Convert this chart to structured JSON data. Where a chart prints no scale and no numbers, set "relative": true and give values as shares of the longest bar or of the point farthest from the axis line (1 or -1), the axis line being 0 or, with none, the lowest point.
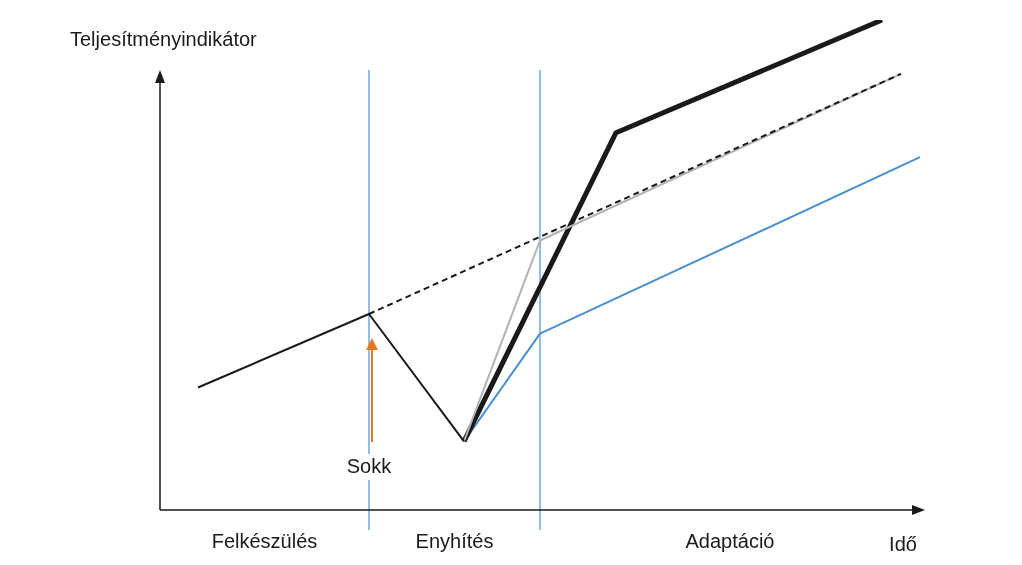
{
  "chart_data": {
    "type": "line",
    "relative": true,
    "ylabel": "Teljesítményindikátor",
    "xlabel": "Idő",
    "legend": false,
    "marker": "none",
    "categories": [
      null,
      null,
      null,
      null,
      null,
      null,
      null,
      null,
      null,
      null,
      null,
      null,
      null,
      null,
      null,
      null,
      null,
      null,
      null,
      null,
      null,
      null,
      null,
      null,
      null,
      null,
      null,
      null,
      null,
      null,
      null,
      null,
      null,
      null,
      null,
      null,
      null,
      null,
      null,
      null,
      null
    ],
    "series": [
      {
        "color": "#1a1a1a",
        "values": [
          null,
          null,
          0.25,
          null,
          null,
          null,
          null,
          null,
          null,
          null,
          null,
          0.4,
          null,
          null,
          null,
          null,
          0.14,
          null,
          null,
          null,
          null,
          null,
          null,
          null,
          null,
          null,
          null,
          null,
          null,
          null,
          null,
          null,
          null,
          null,
          null,
          null,
          null,
          null,
          null,
          null,
          null
        ]
      },
      {
        "color": "#1a1a1a",
        "line_style": "dashed",
        "values": [
          null,
          null,
          null,
          null,
          null,
          null,
          null,
          null,
          null,
          null,
          null,
          0.4,
          null,
          null,
          null,
          null,
          null,
          null,
          null,
          null,
          null,
          null,
          null,
          null,
          null,
          null,
          null,
          null,
          null,
          null,
          null,
          null,
          null,
          null,
          null,
          null,
          null,
          null,
          null,
          0.89,
          null
        ]
      },
      {
        "color": "#b3b3b3",
        "values": [
          null,
          null,
          null,
          null,
          null,
          null,
          null,
          null,
          null,
          null,
          null,
          null,
          null,
          null,
          null,
          null,
          0.14,
          null,
          null,
          null,
          0.55,
          null,
          null,
          null,
          null,
          null,
          null,
          null,
          null,
          null,
          null,
          null,
          null,
          null,
          null,
          null,
          null,
          null,
          null,
          0.89,
          null
        ]
      },
      {
        "color": "#1a1a1a",
        "values": [
          null,
          null,
          null,
          null,
          null,
          null,
          null,
          null,
          null,
          null,
          null,
          null,
          null,
          null,
          null,
          null,
          0.14,
          null,
          null,
          null,
          null,
          null,
          null,
          null,
          0.77,
          null,
          null,
          null,
          null,
          null,
          null,
          null,
          null,
          null,
          null,
          null,
          null,
          null,
          1.0,
          null,
          null
        ]
      },
      {
        "color": "#4a90d0",
        "values": [
          null,
          null,
          null,
          null,
          null,
          null,
          null,
          null,
          null,
          null,
          null,
          null,
          null,
          null,
          null,
          null,
          0.14,
          null,
          null,
          null,
          0.36,
          null,
          null,
          null,
          null,
          null,
          null,
          null,
          null,
          null,
          null,
          null,
          null,
          null,
          null,
          null,
          null,
          null,
          null,
          null,
          0.72
        ]
      }
    ],
    "annotations": [
      "Sokk",
      "Felkészülés",
      "Enyhítés",
      "Adaptáció"
    ]
  }
}
